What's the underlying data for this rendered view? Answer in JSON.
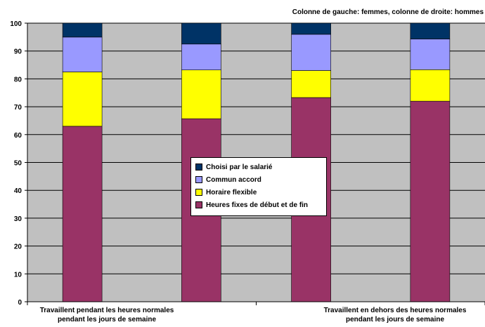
{
  "chart_data": {
    "type": "bar",
    "stacked": true,
    "note": "Colonne de gauche: femmes, colonne de droite: hommes",
    "categories": [
      [
        "Travaillent pendant les heures normales",
        "pendant les jours de semaine"
      ],
      [
        "Travaillent en dehors des heures normales",
        "pendant les jours de semaine"
      ]
    ],
    "bars": [
      {
        "category": 0,
        "values": [
          63,
          19.5,
          12.5,
          5
        ]
      },
      {
        "category": 0,
        "values": [
          65.7,
          17.5,
          9.3,
          7.5
        ]
      },
      {
        "category": 1,
        "values": [
          73.3,
          9.7,
          13,
          4
        ]
      },
      {
        "category": 1,
        "values": [
          72,
          11.3,
          11,
          5.7
        ]
      }
    ],
    "series": [
      {
        "name": "Heures fixes de début et de fin",
        "color": "#993366"
      },
      {
        "name": "Horaire flexible",
        "color": "#FFFF00"
      },
      {
        "name": "Commun accord",
        "color": "#9999FF"
      },
      {
        "name": "Choisi par le salarié",
        "color": "#003366"
      }
    ],
    "legend_order": [
      3,
      2,
      1,
      0
    ],
    "y_ticks": [
      "0",
      "10",
      "20",
      "30",
      "40",
      "50",
      "60",
      "70",
      "80",
      "90",
      "100"
    ],
    "ylim": [
      0,
      100
    ],
    "grid": true,
    "legend_position": "center",
    "plot_background": "#C0C0C0"
  }
}
